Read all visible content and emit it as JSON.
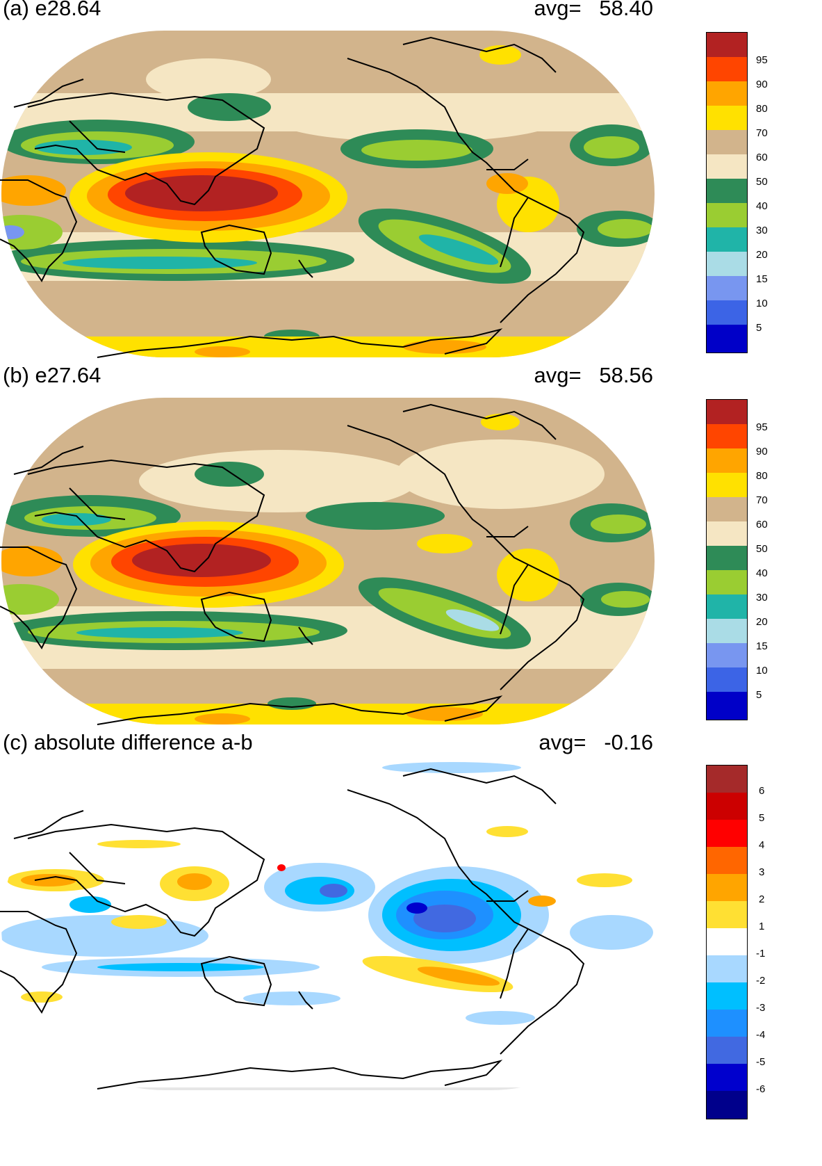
{
  "panels": [
    {
      "title": "(a) e28.64",
      "avg_label": "avg=",
      "avg_value": "58.40",
      "colorbar": {
        "colors": [
          "#0000c8",
          "#3c64e6",
          "#7896f0",
          "#aadce6",
          "#20b4a8",
          "#9acd32",
          "#2e8b57",
          "#f5e6c3",
          "#d2b48c",
          "#ffe100",
          "#ffa500",
          "#ff4500",
          "#b22222"
        ],
        "ticks": [
          "5",
          "10",
          "15",
          "20",
          "30",
          "40",
          "50",
          "60",
          "70",
          "80",
          "90",
          "95"
        ]
      }
    },
    {
      "title": "(b) e27.64",
      "avg_label": "avg=",
      "avg_value": "58.56",
      "colorbar": {
        "colors": [
          "#0000c8",
          "#3c64e6",
          "#7896f0",
          "#aadce6",
          "#20b4a8",
          "#9acd32",
          "#2e8b57",
          "#f5e6c3",
          "#d2b48c",
          "#ffe100",
          "#ffa500",
          "#ff4500",
          "#b22222"
        ],
        "ticks": [
          "5",
          "10",
          "15",
          "20",
          "30",
          "40",
          "50",
          "60",
          "70",
          "80",
          "90",
          "95"
        ]
      }
    },
    {
      "title": "(c) absolute difference a-b",
      "avg_label": "avg=",
      "avg_value": "-0.16",
      "colorbar": {
        "colors": [
          "#00008b",
          "#0000cd",
          "#4169e1",
          "#1e90ff",
          "#00bfff",
          "#a8d8ff",
          "#ffffff",
          "#ffe033",
          "#ffa500",
          "#ff6600",
          "#ff0000",
          "#cc0000",
          "#a52a2a"
        ],
        "ticks": [
          "-6",
          "-5",
          "-4",
          "-3",
          "-2",
          "-1",
          "1",
          "2",
          "3",
          "4",
          "5",
          "6"
        ]
      }
    }
  ]
}
